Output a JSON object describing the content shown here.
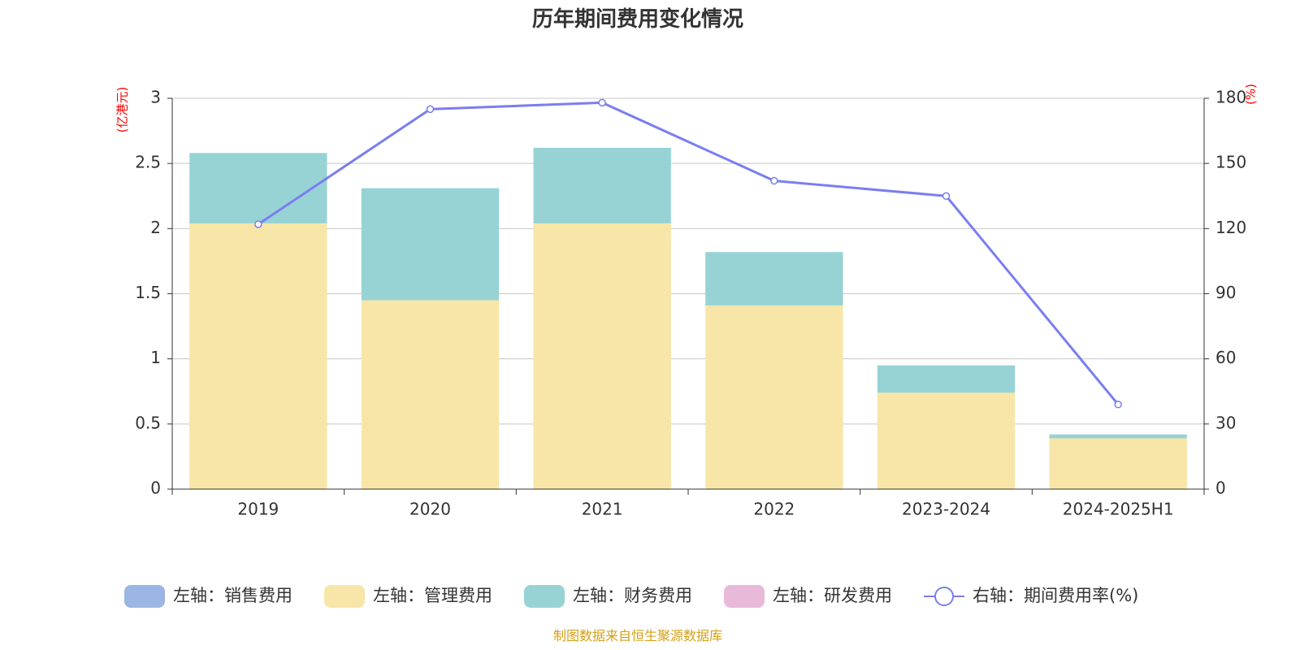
{
  "chart_data": {
    "type": "bar",
    "stacked": true,
    "title": "历年期间费用变化情况",
    "categories": [
      "2019",
      "2020",
      "2021",
      "2022",
      "2023-2024",
      "2024-2025H1"
    ],
    "left_axis": {
      "unit_label": "(亿港元)",
      "ylim": [
        0,
        3
      ],
      "ticks": [
        "0",
        "0.5",
        "1",
        "1.5",
        "2",
        "2.5",
        "3"
      ]
    },
    "right_axis": {
      "unit_label": "(%)",
      "ylim": [
        0,
        180
      ],
      "ticks": [
        "0",
        "30",
        "60",
        "90",
        "120",
        "150",
        "180"
      ]
    },
    "series": [
      {
        "name": "左轴：销售费用",
        "type": "bar",
        "axis": "left",
        "color": "#9bb6e2",
        "values": [
          0,
          0,
          0,
          0,
          0,
          0
        ]
      },
      {
        "name": "左轴：管理费用",
        "type": "bar",
        "axis": "left",
        "color": "#f7e6a7",
        "values": [
          2.04,
          1.45,
          2.04,
          1.41,
          0.74,
          0.39
        ]
      },
      {
        "name": "左轴：财务费用",
        "type": "bar",
        "axis": "left",
        "color": "#97d3d4",
        "values": [
          0.54,
          0.86,
          0.58,
          0.41,
          0.21,
          0.03
        ]
      },
      {
        "name": "左轴：研发费用",
        "type": "bar",
        "axis": "left",
        "color": "#e8b9d9",
        "values": [
          0,
          0,
          0,
          0,
          0,
          0
        ]
      },
      {
        "name": "右轴：期间费用率(%)",
        "type": "line",
        "axis": "right",
        "color": "#7a7ef0",
        "values": [
          122,
          175,
          178,
          142,
          135,
          39
        ]
      }
    ],
    "grid": true,
    "legend_position": "bottom",
    "source": "制图数据来自恒生聚源数据库"
  }
}
